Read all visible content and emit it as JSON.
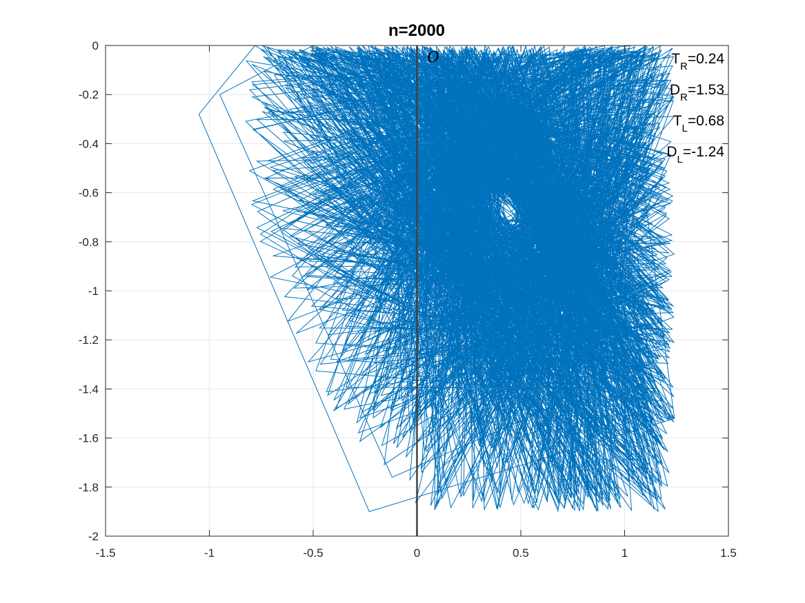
{
  "chart_data": {
    "type": "line",
    "title": "n=2000",
    "xlabel": "",
    "ylabel": "",
    "xlim": [
      -1.5,
      1.5
    ],
    "ylim": [
      -2,
      0
    ],
    "xticks": [
      -1.5,
      -1,
      -0.5,
      0,
      0.5,
      1,
      1.5
    ],
    "xtick_labels": [
      "-1.5",
      "-1",
      "-0.5",
      "0",
      "0.5",
      "1",
      "1.5"
    ],
    "yticks": [
      0,
      -0.2,
      -0.4,
      -0.6,
      -0.8,
      -1,
      -1.2,
      -1.4,
      -1.6,
      -1.8,
      -2
    ],
    "ytick_labels": [
      "0",
      "-0.2",
      "-0.4",
      "-0.6",
      "-0.8",
      "-1",
      "-1.2",
      "-1.4",
      "-1.6",
      "-1.8",
      "-2"
    ],
    "grid": true,
    "series_color": "#0072BD",
    "vline_color": "#404040",
    "vertical_line_x": 0,
    "origin_label": "O",
    "n_points": 2000,
    "annotations": [
      {
        "main": "T",
        "sub": "R",
        "value": "=0.24"
      },
      {
        "main": "D",
        "sub": "R",
        "value": "=1.53"
      },
      {
        "main": "T",
        "sub": "L",
        "value": "=0.68"
      },
      {
        "main": "D",
        "sub": "L",
        "value": "=-1.24"
      }
    ],
    "parameters": {
      "T_R": 0.24,
      "D_R": 1.53,
      "T_L": 0.68,
      "D_L": -1.24
    },
    "series": [
      {
        "values_sample": [
          [
            0.0,
            0.0
          ],
          [
            1.0,
            0.0
          ],
          [
            1.24,
            -1.52
          ],
          [
            -0.23,
            -1.9
          ],
          [
            -1.05,
            -0.28
          ],
          [
            -0.78,
            0.0
          ],
          [
            0.43,
            -0.65
          ],
          [
            0.72,
            -0.42
          ],
          [
            0.88,
            -1.18
          ],
          [
            0.12,
            -1.52
          ],
          [
            -0.32,
            -0.82
          ],
          [
            0.05,
            -0.18
          ],
          [
            0.96,
            -0.1
          ],
          [
            1.12,
            -1.3
          ],
          [
            -0.12,
            -1.76
          ],
          [
            -0.95,
            -0.2
          ],
          [
            -0.5,
            0.0
          ],
          [
            0.52,
            -0.7
          ],
          [
            0.62,
            -0.55
          ],
          [
            0.45,
            -0.68
          ]
        ]
      }
    ]
  }
}
